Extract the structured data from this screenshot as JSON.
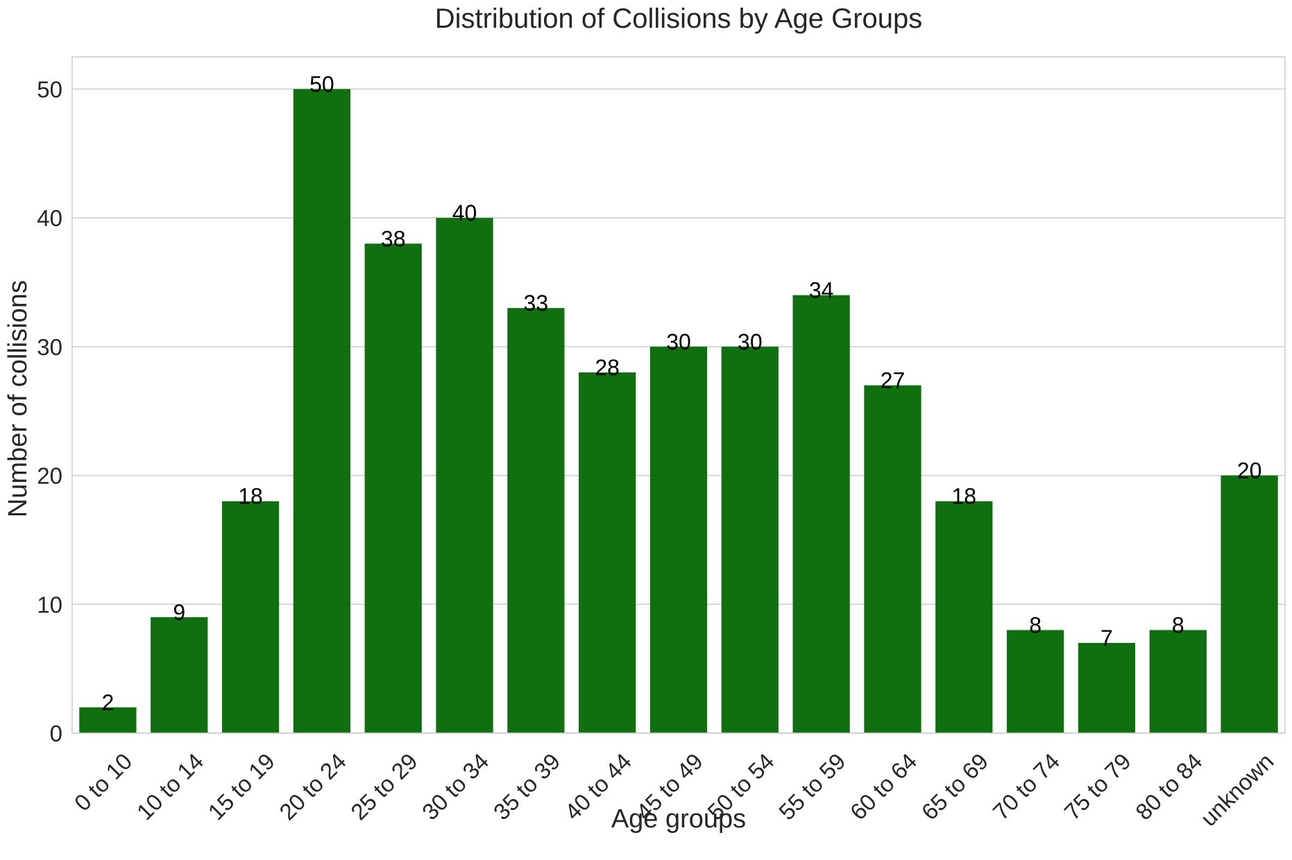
{
  "chart_data": {
    "type": "bar",
    "title": "Distribution of Collisions by Age Groups",
    "xlabel": "Age groups",
    "ylabel": "Number of collisions",
    "categories": [
      "0 to 10",
      "10 to 14",
      "15 to 19",
      "20 to 24",
      "25 to 29",
      "30 to 34",
      "35 to 39",
      "40 to 44",
      "45 to 49",
      "50 to 54",
      "55 to 59",
      "60 to 64",
      "65 to 69",
      "70 to 74",
      "75 to 79",
      "80 to 84",
      "unknown"
    ],
    "values": [
      2,
      9,
      18,
      50,
      38,
      40,
      33,
      28,
      30,
      30,
      34,
      27,
      18,
      8,
      7,
      8,
      20
    ],
    "ylim": [
      0,
      52.5
    ],
    "yticks": [
      0,
      10,
      20,
      30,
      40,
      50
    ],
    "grid": "horizontal",
    "bar_color": "#107010",
    "grid_color": "#cccccc"
  }
}
